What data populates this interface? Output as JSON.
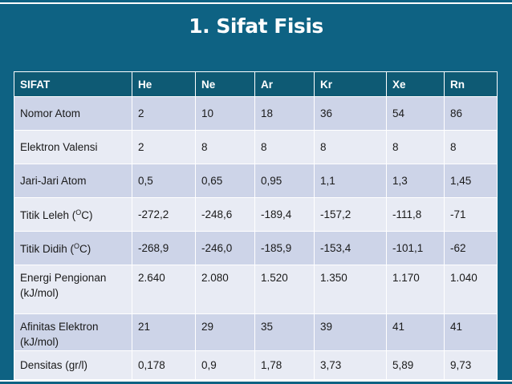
{
  "title": "1. Sifat Fisis",
  "table": {
    "headers": [
      "SIFAT",
      "He",
      "Ne",
      "Ar",
      "Kr",
      "Xe",
      "Rn"
    ],
    "rows": [
      {
        "label": "Nomor Atom",
        "values": [
          "2",
          "10",
          "18",
          "36",
          "54",
          "86"
        ]
      },
      {
        "label": "Elektron Valensi",
        "values": [
          "2",
          "8",
          "8",
          "8",
          "8",
          "8"
        ]
      },
      {
        "label": "Jari-Jari Atom",
        "values": [
          "0,5",
          "0,65",
          "0,95",
          "1,1",
          "1,3",
          "1,45"
        ]
      },
      {
        "label": "Titik Leleh (",
        "label_sup": "O",
        "label_tail": "C)",
        "values": [
          "-272,2",
          "-248,6",
          "-189,4",
          "-157,2",
          "-111,8",
          "-71"
        ]
      },
      {
        "label": "Titik Didih (",
        "label_sup": "O",
        "label_tail": "C)",
        "values": [
          "-268,9",
          "-246,0",
          "-185,9",
          "-153,4",
          "-101,1",
          "-62"
        ]
      },
      {
        "label": "Energi Pengionan (kJ/mol)",
        "values": [
          "2.640",
          "2.080",
          "1.520",
          "1.350",
          "1.170",
          "1.040"
        ]
      },
      {
        "label": "Afinitas Elektron (kJ/mol)",
        "values": [
          "21",
          "29",
          "35",
          "39",
          "41",
          "41"
        ]
      },
      {
        "label": "Densitas (gr/l)",
        "values": [
          "0,178",
          "0,9",
          "1,78",
          "3,73",
          "5,89",
          "9,73"
        ]
      }
    ]
  },
  "colors": {
    "background": "#0e6283",
    "header_row": "#0e5a74",
    "row_dark": "#cdd4e8",
    "row_light": "#e8ebf4"
  }
}
